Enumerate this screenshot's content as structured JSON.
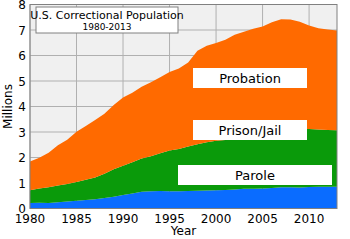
{
  "chart_data": {
    "type": "area",
    "title": "U.S. Correctional Population",
    "subtitle": "1980-2013",
    "x_label": "Year",
    "y_label": "Millions",
    "stacked": true,
    "grid": true,
    "x": [
      1980,
      1981,
      1982,
      1983,
      1984,
      1985,
      1986,
      1987,
      1988,
      1989,
      1990,
      1991,
      1992,
      1993,
      1994,
      1995,
      1996,
      1997,
      1998,
      1999,
      2000,
      2001,
      2002,
      2003,
      2004,
      2005,
      2006,
      2007,
      2008,
      2009,
      2010,
      2011,
      2012,
      2013
    ],
    "xlim": [
      1980,
      2013
    ],
    "xticks": [
      1980,
      1985,
      1990,
      1995,
      2000,
      2005,
      2010
    ],
    "ylim": [
      0,
      8
    ],
    "yticks": [
      0,
      1,
      2,
      3,
      4,
      5,
      6,
      7,
      8
    ],
    "series": [
      {
        "name": "Parole",
        "color": "#0a6cff",
        "values": [
          0.22,
          0.23,
          0.22,
          0.25,
          0.27,
          0.3,
          0.33,
          0.36,
          0.41,
          0.46,
          0.53,
          0.59,
          0.66,
          0.68,
          0.69,
          0.68,
          0.68,
          0.69,
          0.7,
          0.71,
          0.72,
          0.73,
          0.75,
          0.77,
          0.77,
          0.78,
          0.8,
          0.83,
          0.83,
          0.82,
          0.84,
          0.85,
          0.85,
          0.85
        ]
      },
      {
        "name": "Prison/Jail",
        "color": "#0a9a0a",
        "values": [
          0.5,
          0.55,
          0.61,
          0.65,
          0.69,
          0.74,
          0.8,
          0.86,
          0.95,
          1.08,
          1.15,
          1.22,
          1.3,
          1.37,
          1.48,
          1.59,
          1.65,
          1.74,
          1.82,
          1.89,
          1.94,
          1.96,
          2.04,
          2.09,
          2.14,
          2.2,
          2.26,
          2.3,
          2.31,
          2.3,
          2.28,
          2.25,
          2.23,
          2.22
        ]
      },
      {
        "name": "Probation",
        "color": "#ff6a00",
        "values": [
          1.12,
          1.21,
          1.36,
          1.58,
          1.74,
          1.97,
          2.11,
          2.25,
          2.36,
          2.52,
          2.67,
          2.73,
          2.81,
          2.9,
          2.98,
          3.08,
          3.16,
          3.3,
          3.67,
          3.78,
          3.83,
          3.93,
          4.02,
          4.07,
          4.14,
          4.16,
          4.24,
          4.29,
          4.27,
          4.2,
          4.06,
          3.97,
          3.94,
          3.91
        ]
      }
    ]
  }
}
